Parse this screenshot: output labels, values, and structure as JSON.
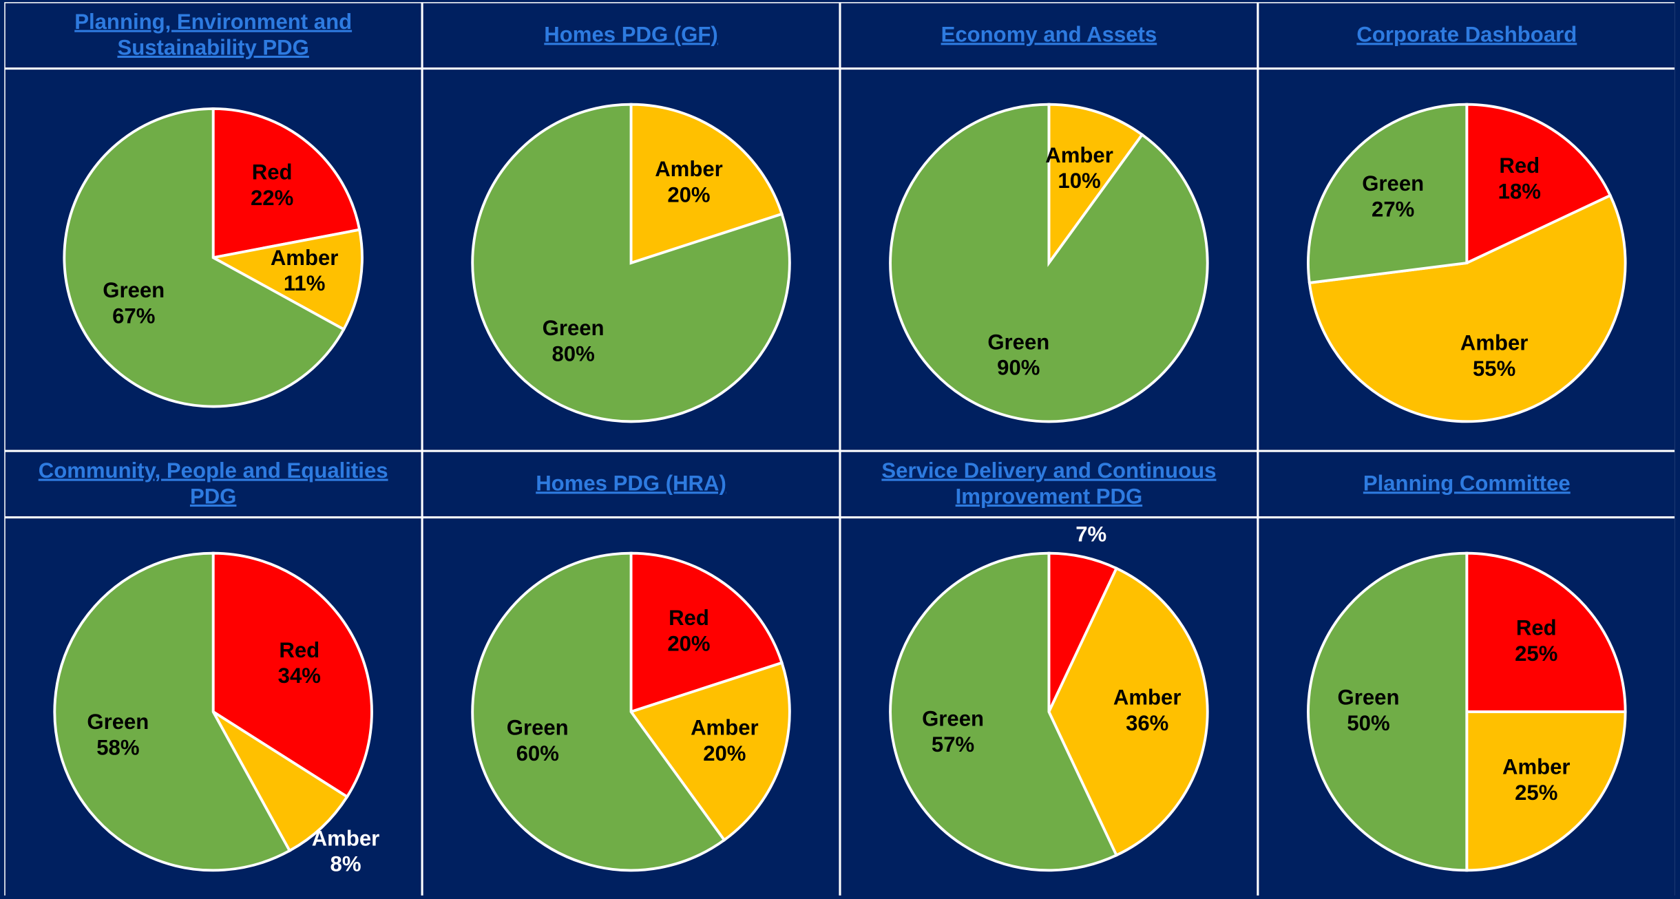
{
  "chart_data": [
    {
      "type": "pie",
      "title": "Planning, Environment and Sustainability PDG",
      "categories": [
        "Red",
        "Amber",
        "Green"
      ],
      "values": [
        22,
        11,
        67
      ],
      "value_labels": [
        "22%",
        "11%",
        "67%"
      ],
      "colors": [
        "#ff0000",
        "#ffc000",
        "#70ad47"
      ]
    },
    {
      "type": "pie",
      "title": "Homes PDG (GF)",
      "categories": [
        "Amber",
        "Green"
      ],
      "values": [
        20,
        80
      ],
      "value_labels": [
        "20%",
        "80%"
      ],
      "colors": [
        "#ffc000",
        "#70ad47"
      ]
    },
    {
      "type": "pie",
      "title": "Economy and Assets",
      "categories": [
        "Amber",
        "Green"
      ],
      "values": [
        10,
        90
      ],
      "value_labels": [
        "10%",
        "90%"
      ],
      "colors": [
        "#ffc000",
        "#70ad47"
      ]
    },
    {
      "type": "pie",
      "title": "Corporate Dashboard",
      "categories": [
        "Red",
        "Amber",
        "Green"
      ],
      "values": [
        18,
        55,
        27
      ],
      "value_labels": [
        "18%",
        "55%",
        "27%"
      ],
      "colors": [
        "#ff0000",
        "#ffc000",
        "#70ad47"
      ]
    },
    {
      "type": "pie",
      "title": "Community, People and Equalities PDG",
      "categories": [
        "Red",
        "Amber",
        "Green"
      ],
      "values": [
        34,
        8,
        58
      ],
      "value_labels": [
        "34%",
        "8%",
        "58%"
      ],
      "colors": [
        "#ff0000",
        "#ffc000",
        "#70ad47"
      ]
    },
    {
      "type": "pie",
      "title": "Homes PDG (HRA)",
      "categories": [
        "Red",
        "Amber",
        "Green"
      ],
      "values": [
        20,
        20,
        60
      ],
      "value_labels": [
        "20%",
        "20%",
        "60%"
      ],
      "colors": [
        "#ff0000",
        "#ffc000",
        "#70ad47"
      ]
    },
    {
      "type": "pie",
      "title": "Service Delivery and Continuous Improvement PDG",
      "categories": [
        "Red",
        "Amber",
        "Green"
      ],
      "values": [
        7,
        36,
        57
      ],
      "value_labels": [
        "7%",
        "36%",
        "57%"
      ],
      "colors": [
        "#ff0000",
        "#ffc000",
        "#70ad47"
      ]
    },
    {
      "type": "pie",
      "title": "Planning Committee",
      "categories": [
        "Red",
        "Amber",
        "Green"
      ],
      "values": [
        25,
        25,
        50
      ],
      "value_labels": [
        "25%",
        "25%",
        "50%"
      ],
      "colors": [
        "#ff0000",
        "#ffc000",
        "#70ad47"
      ]
    }
  ]
}
